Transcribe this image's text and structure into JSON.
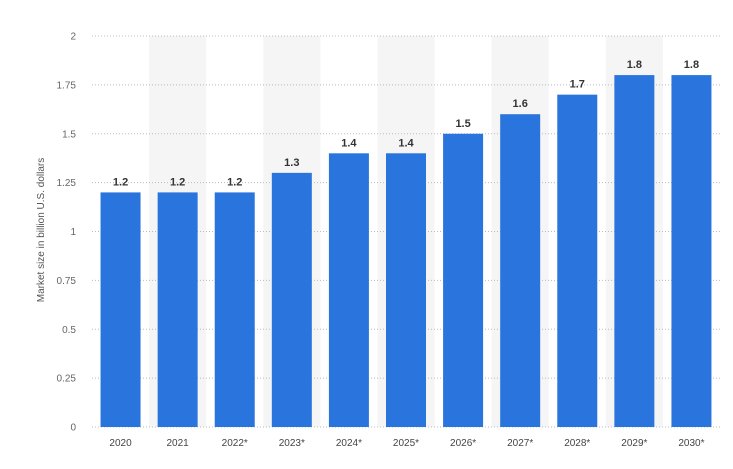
{
  "chart_data": {
    "type": "bar",
    "categories": [
      "2020",
      "2021",
      "2022*",
      "2023*",
      "2024*",
      "2025*",
      "2026*",
      "2027*",
      "2028*",
      "2029*",
      "2030*"
    ],
    "values": [
      1.2,
      1.2,
      1.2,
      1.3,
      1.4,
      1.4,
      1.5,
      1.6,
      1.7,
      1.8,
      1.8
    ],
    "data_labels": [
      "1.2",
      "1.2",
      "1.2",
      "1.3",
      "1.4",
      "1.4",
      "1.5",
      "1.6",
      "1.7",
      "1.8",
      "1.8"
    ],
    "yticks": [
      "0",
      "0.25",
      "0.5",
      "0.75",
      "1",
      "1.25",
      "1.5",
      "1.75",
      "2"
    ],
    "ylabel": "Market size in billion U.S. dollars",
    "xlabel": "",
    "ylim": [
      0,
      2
    ],
    "grid": "horizontal dotted",
    "alternating_band_shading": true,
    "colors": {
      "bar": "#2a74dd",
      "band": "#f5f5f5",
      "grid": "#bbbbbb"
    }
  }
}
